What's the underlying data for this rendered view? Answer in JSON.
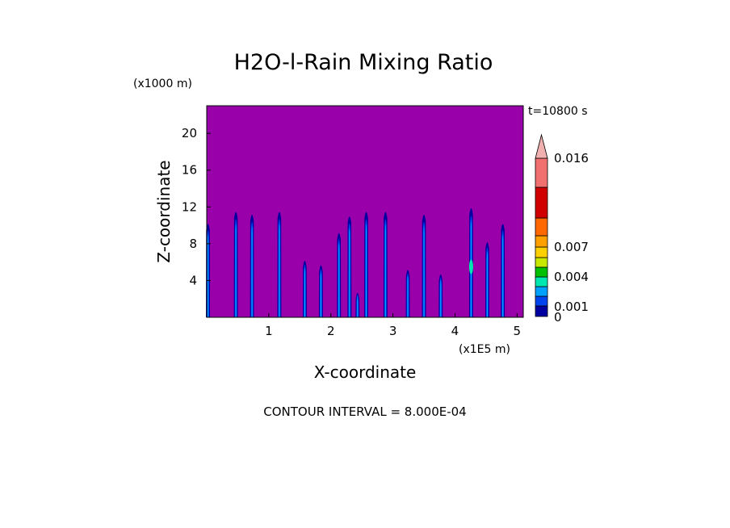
{
  "chart_data": {
    "type": "contour",
    "title": "H2O-l-Rain Mixing Ratio",
    "xlabel": "X-coordinate",
    "ylabel": "Z-coordinate",
    "x_unit": "(x1E5 m)",
    "y_unit": "(x1000 m)",
    "time_label": "t=10800 s",
    "footer": "CONTOUR INTERVAL = 8.000E-04",
    "xlim": [
      0,
      5.1
    ],
    "ylim": [
      0,
      23
    ],
    "x_ticks": [
      "1",
      "2",
      "3",
      "4",
      "5"
    ],
    "y_ticks": [
      "4",
      "8",
      "12",
      "16",
      "20"
    ],
    "background_color": "#9900aa",
    "colorbar": {
      "levels": [
        0,
        0.0008,
        0.0016,
        0.0024,
        0.0032,
        0.004,
        0.0048,
        0.0056,
        0.0064,
        0.0072,
        0.011,
        0.0144,
        0.0176
      ],
      "colors": [
        "#0000a0",
        "#0044ee",
        "#00a0ff",
        "#00e8b0",
        "#00c000",
        "#c8e800",
        "#ffd000",
        "#ffa000",
        "#ff6800",
        "#d00000",
        "#f07070",
        "#f0b0b0"
      ],
      "labels": [
        "0",
        "0.001",
        "0.004",
        "0.007",
        "0.016"
      ],
      "label_values": [
        0,
        0.001,
        0.004,
        0.007,
        0.016
      ]
    },
    "cells": [
      {
        "x": 0.02,
        "top": 10.5,
        "w": 0.03
      },
      {
        "x": 0.47,
        "top": 11.8,
        "w": 0.045
      },
      {
        "x": 0.73,
        "top": 11.5,
        "w": 0.045
      },
      {
        "x": 1.17,
        "top": 11.8,
        "w": 0.05
      },
      {
        "x": 1.58,
        "top": 6.5,
        "w": 0.035
      },
      {
        "x": 1.84,
        "top": 6.0,
        "w": 0.035
      },
      {
        "x": 2.13,
        "top": 9.5,
        "w": 0.04
      },
      {
        "x": 2.3,
        "top": 11.3,
        "w": 0.045
      },
      {
        "x": 2.43,
        "top": 3.0,
        "w": 0.02
      },
      {
        "x": 2.57,
        "top": 11.8,
        "w": 0.045
      },
      {
        "x": 2.88,
        "top": 11.8,
        "w": 0.045
      },
      {
        "x": 3.24,
        "top": 5.5,
        "w": 0.035
      },
      {
        "x": 3.5,
        "top": 11.5,
        "w": 0.045
      },
      {
        "x": 3.77,
        "top": 5.0,
        "w": 0.035
      },
      {
        "x": 4.26,
        "top": 12.2,
        "w": 0.06
      },
      {
        "x": 4.52,
        "top": 8.5,
        "w": 0.045
      },
      {
        "x": 4.77,
        "top": 10.5,
        "w": 0.045
      }
    ]
  }
}
